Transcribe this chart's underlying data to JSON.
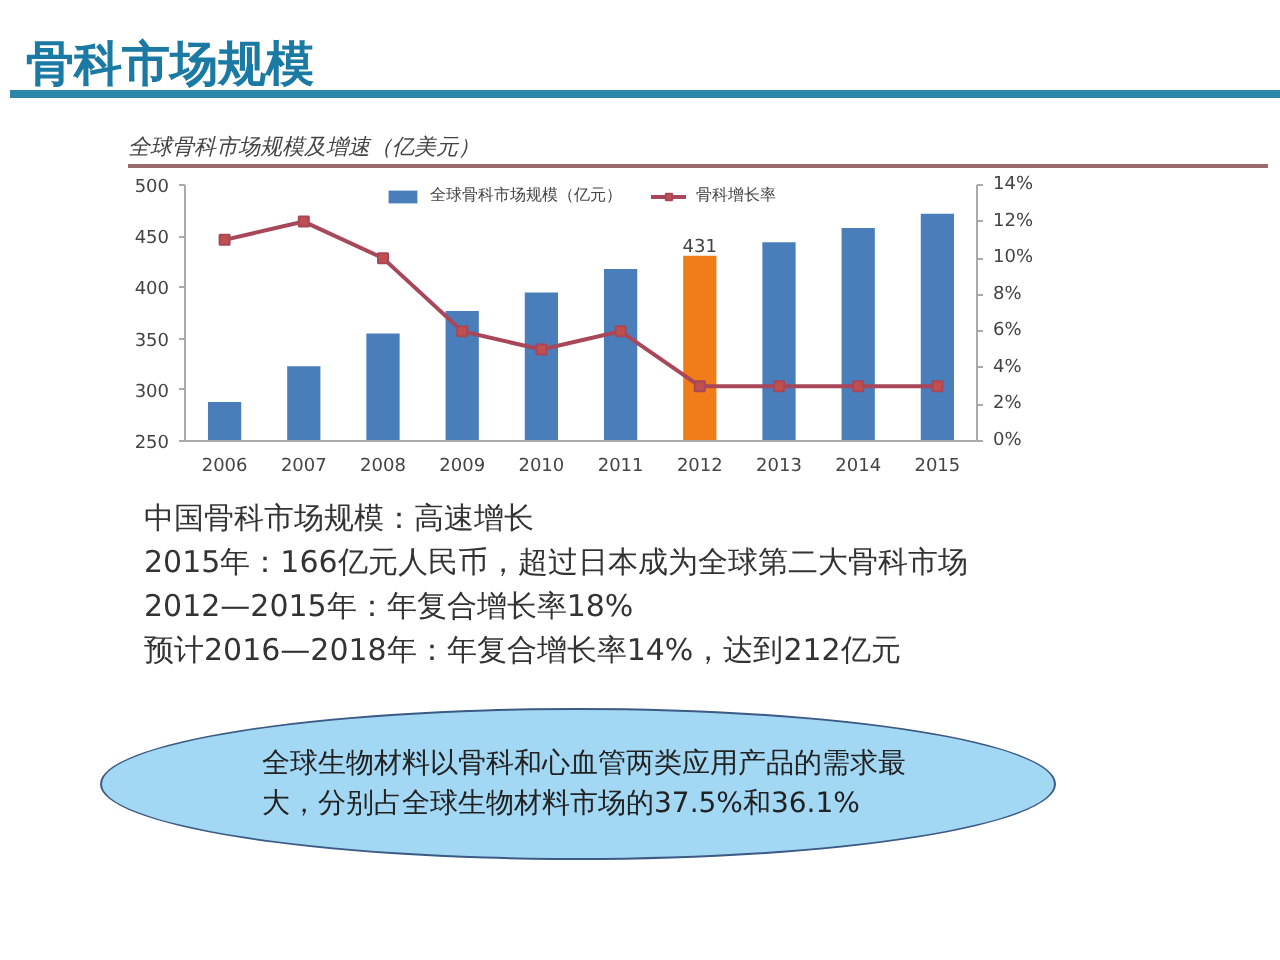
{
  "chart_data": {
    "type": "bar",
    "title": "骨科市场规模",
    "subtitle": "全球骨科市场规模及增速（亿美元）",
    "categories": [
      "2006",
      "2007",
      "2008",
      "2009",
      "2010",
      "2011",
      "2012",
      "2013",
      "2014",
      "2015"
    ],
    "series": [
      {
        "name": "全球骨科市场规模（亿元）",
        "colors": [
          "#4a7ebb",
          "#4a7ebb",
          "#4a7ebb",
          "#4a7ebb",
          "#4a7ebb",
          "#4a7ebb",
          "#f07d1a",
          "#4a7ebb",
          "#4a7ebb",
          "#4a7ebb"
        ],
        "values": [
          288,
          323,
          355,
          377,
          395,
          418,
          431,
          444,
          458,
          472
        ],
        "value_labels": [
          null,
          null,
          null,
          null,
          null,
          null,
          "431",
          null,
          null,
          null
        ]
      },
      {
        "name": "骨科增长率",
        "type": "line",
        "axis": "y2",
        "color": "#a8475a",
        "values": [
          11,
          12,
          10,
          6,
          5,
          6,
          3,
          3,
          3,
          3
        ]
      }
    ],
    "ylim": [
      250,
      500
    ],
    "yticks": [
      250,
      300,
      350,
      400,
      450,
      500
    ],
    "y2lim": [
      0,
      14
    ],
    "y2ticks": [
      {
        "value": 0,
        "label": "0%"
      },
      {
        "value": 2,
        "label": "2%"
      },
      {
        "value": 4,
        "label": "4%"
      },
      {
        "value": 6,
        "label": "6%"
      },
      {
        "value": 8,
        "label": "8%"
      },
      {
        "value": 10,
        "label": "10%"
      },
      {
        "value": 12,
        "label": "12%"
      },
      {
        "value": 14,
        "label": "14%"
      }
    ],
    "legend": "top",
    "marker": "square",
    "line_style": "solid",
    "annotations": [
      "中国骨科市场规模：高速增长",
      "2015年：166亿元人民币，超过日本成为全球第二大骨科市场",
      "2012—2015年：年复合增长率18%",
      "预计2016—2018年：年复合增长率14%，达到212亿元",
      "全球生物材料以骨科和心血管两类应用产品的需求最大，分别占全球生物材料市场的37.5%和36.1%"
    ]
  }
}
